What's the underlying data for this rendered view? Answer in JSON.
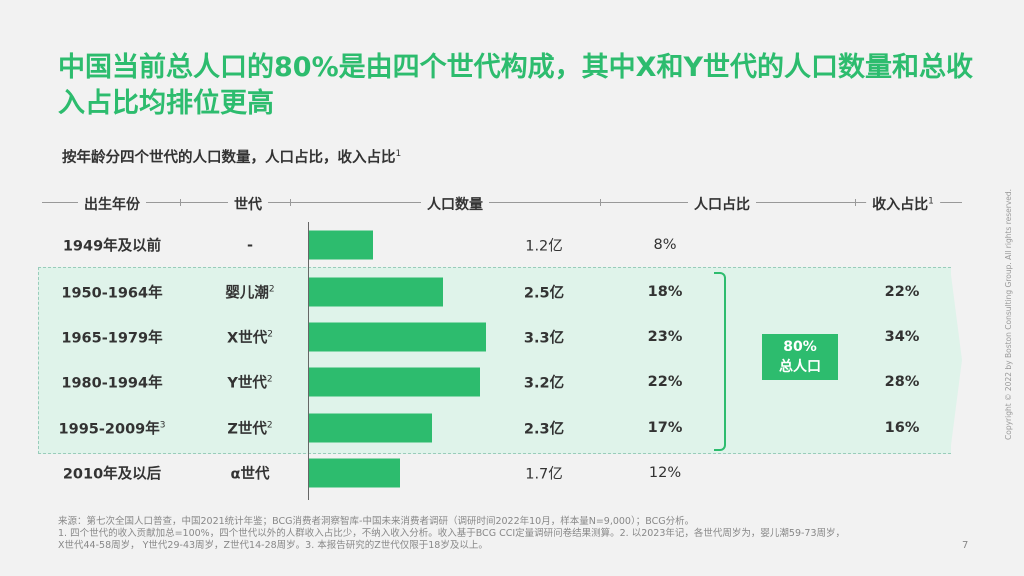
{
  "title": "中国当前总人口的80%是由四个世代构成，其中X和Y世代的人口数量和总收入占比均排位更高",
  "subtitle": "按年龄分四个世代的人口数量，人口占比，收入占比",
  "subtitle_sup": "1",
  "headers": {
    "birth": "出生年份",
    "gen": "世代",
    "pop": "人口数量",
    "share": "人口占比",
    "income": "收入占比",
    "income_sup": "1"
  },
  "rows": [
    {
      "birth": "1949年及以前",
      "birth_sup": "",
      "gen": "-",
      "gen_sup": "",
      "pop": 1.2,
      "pop_label": "1.2亿",
      "share": "8%",
      "income": ""
    },
    {
      "birth": "1950-1964年",
      "birth_sup": "",
      "gen": "婴儿潮",
      "gen_sup": "2",
      "pop": 2.5,
      "pop_label": "2.5亿",
      "share": "18%",
      "income": "22%"
    },
    {
      "birth": "1965-1979年",
      "birth_sup": "",
      "gen": "X世代",
      "gen_sup": "2",
      "pop": 3.3,
      "pop_label": "3.3亿",
      "share": "23%",
      "income": "34%"
    },
    {
      "birth": "1980-1994年",
      "birth_sup": "",
      "gen": "Y世代",
      "gen_sup": "2",
      "pop": 3.2,
      "pop_label": "3.2亿",
      "share": "22%",
      "income": "28%"
    },
    {
      "birth": "1995-2009年",
      "birth_sup": "3",
      "gen": "Z世代",
      "gen_sup": "2",
      "pop": 2.3,
      "pop_label": "2.3亿",
      "share": "17%",
      "income": "16%"
    },
    {
      "birth": "2010年及以后",
      "birth_sup": "",
      "gen": "α世代",
      "gen_sup": "",
      "pop": 1.7,
      "pop_label": "1.7亿",
      "share": "12%",
      "income": ""
    }
  ],
  "total": {
    "pct": "80%",
    "label": "总人口"
  },
  "footnotes": [
    "来源：第七次全国人口普查，中国2021统计年鉴；BCG消费者洞察智库-中国未来消费者调研（调研时间2022年10月，样本量N=9,000）；BCG分析。",
    "1. 四个世代的收入贡献加总=100%，四个世代以外的人群收入占比少，不纳入收入分析。收入基于BCG CCI定量调研问卷结果测算。2. 以2023年记，各世代周岁为，婴儿潮59-73周岁，",
    "X世代44-58周岁， Y世代29-43周岁，Z世代14-28周岁。3. 本报告研究的Z世代仅限于18岁及以上。"
  ],
  "page_number": "7",
  "copyright": "Copyright © 2022 by Boston Consulting Group. All rights reserved.",
  "colors": {
    "accent": "#2dbc6e",
    "band": "#dff3ea"
  }
}
